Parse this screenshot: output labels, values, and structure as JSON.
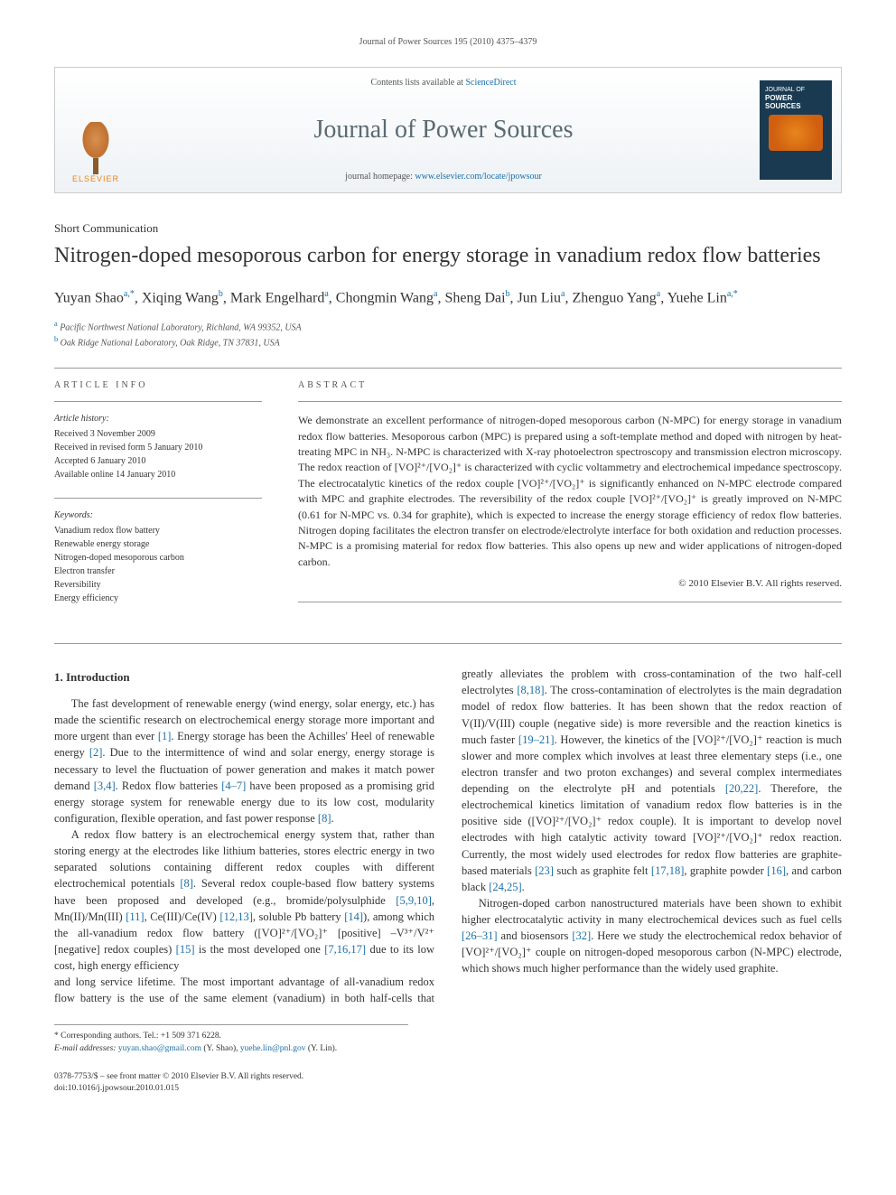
{
  "running_header": "Journal of Power Sources 195 (2010) 4375–4379",
  "banner": {
    "contents_prefix": "Contents lists available at ",
    "contents_link": "ScienceDirect",
    "journal_name": "Journal of Power Sources",
    "homepage_prefix": "journal homepage: ",
    "homepage_url": "www.elsevier.com/locate/jpowsour",
    "publisher": "ELSEVIER",
    "cover_title": "POWER SOURCES",
    "cover_prefix": "JOURNAL OF"
  },
  "article_type": "Short Communication",
  "title": "Nitrogen-doped mesoporous carbon for energy storage in vanadium redox flow batteries",
  "authors_html": "Yuyan Shao<sup>a,*</sup>, Xiqing Wang<sup>b</sup>, Mark Engelhard<sup>a</sup>, Chongmin Wang<sup>a</sup>, Sheng Dai<sup>b</sup>, Jun Liu<sup>a</sup>, Zhenguo Yang<sup>a</sup>, Yuehe Lin<sup>a,*</sup>",
  "affiliations": [
    {
      "mark": "a",
      "text": "Pacific Northwest National Laboratory, Richland, WA 99352, USA"
    },
    {
      "mark": "b",
      "text": "Oak Ridge National Laboratory, Oak Ridge, TN 37831, USA"
    }
  ],
  "info": {
    "head": "ARTICLE INFO",
    "history_label": "Article history:",
    "history": [
      "Received 3 November 2009",
      "Received in revised form 5 January 2010",
      "Accepted 6 January 2010",
      "Available online 14 January 2010"
    ],
    "keywords_label": "Keywords:",
    "keywords": [
      "Vanadium redox flow battery",
      "Renewable energy storage",
      "Nitrogen-doped mesoporous carbon",
      "Electron transfer",
      "Reversibility",
      "Energy efficiency"
    ]
  },
  "abstract": {
    "head": "ABSTRACT",
    "text": "We demonstrate an excellent performance of nitrogen-doped mesoporous carbon (N-MPC) for energy storage in vanadium redox flow batteries. Mesoporous carbon (MPC) is prepared using a soft-template method and doped with nitrogen by heat-treating MPC in NH₃. N-MPC is characterized with X-ray photoelectron spectroscopy and transmission electron microscopy. The redox reaction of [VO]²⁺/[VO₂]⁺ is characterized with cyclic voltammetry and electrochemical impedance spectroscopy. The electrocatalytic kinetics of the redox couple [VO]²⁺/[VO₂]⁺ is significantly enhanced on N-MPC electrode compared with MPC and graphite electrodes. The reversibility of the redox couple [VO]²⁺/[VO₂]⁺ is greatly improved on N-MPC (0.61 for N-MPC vs. 0.34 for graphite), which is expected to increase the energy storage efficiency of redox flow batteries. Nitrogen doping facilitates the electron transfer on electrode/electrolyte interface for both oxidation and reduction processes. N-MPC is a promising material for redox flow batteries. This also opens up new and wider applications of nitrogen-doped carbon.",
    "copyright": "© 2010 Elsevier B.V. All rights reserved."
  },
  "body": {
    "h_intro": "1.  Introduction",
    "p1": "The fast development of renewable energy (wind energy, solar energy, etc.) has made the scientific research on electrochemical energy storage more important and more urgent than ever [1]. Energy storage has been the Achilles' Heel of renewable energy [2]. Due to the intermittence of wind and solar energy, energy storage is necessary to level the fluctuation of power generation and makes it match power demand [3,4]. Redox flow batteries [4–7] have been proposed as a promising grid energy storage system for renewable energy due to its low cost, modularity configuration, flexible operation, and fast power response [8].",
    "p2": "A redox flow battery is an electrochemical energy system that, rather than storing energy at the electrodes like lithium batteries, stores electric energy in two separated solutions containing different redox couples with different electrochemical potentials [8]. Several redox couple-based flow battery systems have been proposed and developed (e.g., bromide/polysulphide [5,9,10], Mn(II)/Mn(III) [11], Ce(III)/Ce(IV) [12,13], soluble Pb battery [14]), among which the all-vanadium redox flow battery ([VO]²⁺/[VO₂]⁺ [positive] –V³⁺/V²⁺ [negative] redox couples) [15] is the most developed one [7,16,17] due to its low cost, high energy efficiency",
    "p3": "and long service lifetime. The most important advantage of all-vanadium redox flow battery is the use of the same element (vanadium) in both half-cells that greatly alleviates the problem with cross-contamination of the two half-cell electrolytes [8,18]. The cross-contamination of electrolytes is the main degradation model of redox flow batteries. It has been shown that the redox reaction of V(II)/V(III) couple (negative side) is more reversible and the reaction kinetics is much faster [19–21]. However, the kinetics of the [VO]²⁺/[VO₂]⁺ reaction is much slower and more complex which involves at least three elementary steps (i.e., one electron transfer and two proton exchanges) and several complex intermediates depending on the electrolyte pH and potentials [20,22]. Therefore, the electrochemical kinetics limitation of vanadium redox flow batteries is in the positive side ([VO]²⁺/[VO₂]⁺ redox couple). It is important to develop novel electrodes with high catalytic activity toward [VO]²⁺/[VO₂]⁺ redox reaction. Currently, the most widely used electrodes for redox flow batteries are graphite-based materials [23] such as graphite felt [17,18], graphite powder [16], and carbon black [24,25].",
    "p4": "Nitrogen-doped carbon nanostructured materials have been shown to exhibit higher electrocatalytic activity in many electrochemical devices such as fuel cells [26–31] and biosensors [32]. Here we study the electrochemical redox behavior of [VO]²⁺/[VO₂]⁺ couple on nitrogen-doped mesoporous carbon (N-MPC) electrode, which shows much higher performance than the widely used graphite."
  },
  "footnotes": {
    "corr": "* Corresponding authors. Tel.: +1 509 371 6228.",
    "emails_label": "E-mail addresses: ",
    "email1": "yuyan.shao@gmail.com",
    "email1_who": " (Y. Shao), ",
    "email2": "yuehe.lin@pnl.gov",
    "email2_who": " (Y. Lin)."
  },
  "bottom": {
    "issn": "0378-7753/$ – see front matter © 2010 Elsevier B.V. All rights reserved.",
    "doi": "doi:10.1016/j.jpowsour.2010.01.015"
  },
  "colors": {
    "link": "#1b6fa8",
    "text": "#333333",
    "muted": "#555555",
    "rule": "#999999",
    "elsevier_orange": "#e8851c",
    "cover_bg": "#1a3a52"
  },
  "typography": {
    "body_pt": 12.5,
    "title_pt": 24,
    "authors_pt": 16,
    "small_pt": 10,
    "journal_banner_pt": 28
  }
}
